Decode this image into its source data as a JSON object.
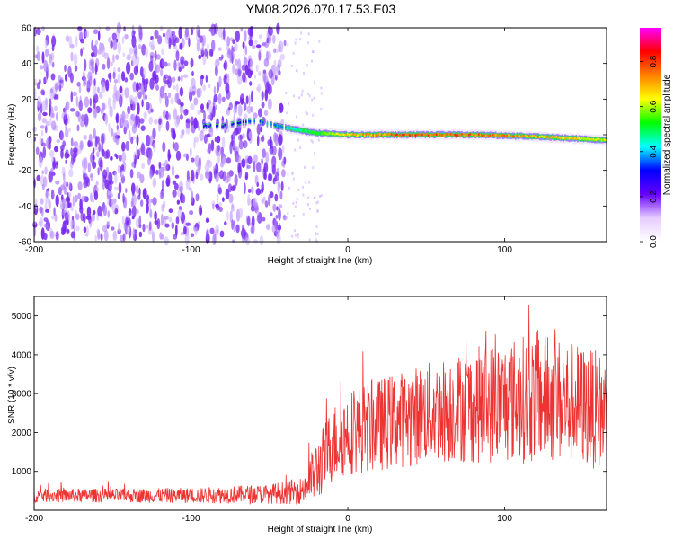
{
  "title": "YM08.2026.070.17.53.E03",
  "chart_data": [
    {
      "type": "heatmap",
      "xlabel": "Height of straight line (km)",
      "ylabel": "Frequency (Hz)",
      "xlim": [
        -200,
        165
      ],
      "ylim": [
        -60,
        60
      ],
      "xticks": [
        -200,
        -100,
        0,
        100
      ],
      "xtick_labels": [
        "-200",
        "-100",
        "0",
        "100"
      ],
      "yticks": [
        -60,
        -40,
        -20,
        0,
        20,
        40,
        60
      ],
      "ytick_labels": [
        "-60",
        "-40",
        "-20",
        "0",
        "20",
        "40",
        "60"
      ],
      "colorbar": {
        "label": "Normalized spectral amplitude",
        "range": [
          0,
          0.95
        ],
        "ticks": [
          0.0,
          0.2,
          0.4,
          0.6,
          0.8
        ],
        "tick_labels": [
          "0.0",
          "0.2",
          "0.4",
          "0.6",
          "0.8"
        ],
        "colormap": [
          "#ffffff",
          "#e6ccff",
          "#6600ff",
          "#0000ff",
          "#00ffff",
          "#00ff00",
          "#ffff00",
          "#ff8000",
          "#ff0000",
          "#ff00ff"
        ]
      },
      "noise_region_x": [
        -200,
        -40
      ],
      "signal_line": {
        "x": [
          -80,
          -60,
          -40,
          -20,
          0,
          40,
          80,
          120,
          165
        ],
        "frequency": [
          5,
          8,
          4,
          1,
          0,
          0,
          0,
          -1,
          -3
        ],
        "amplitude": [
          0.3,
          0.4,
          0.45,
          0.6,
          0.75,
          0.9,
          0.85,
          0.8,
          0.7
        ]
      }
    },
    {
      "type": "line",
      "xlabel": "Height of straight line (km)",
      "ylabel": "SNR (10 * v/v)",
      "xlim": [
        -200,
        165
      ],
      "ylim": [
        0,
        5500
      ],
      "xticks": [
        -200,
        -100,
        0,
        100
      ],
      "xtick_labels": [
        "-200",
        "-100",
        "0",
        "100"
      ],
      "yticks": [
        1000,
        2000,
        3000,
        4000,
        5000
      ],
      "ytick_labels": [
        "1000",
        "2000",
        "3000",
        "4000",
        "5000"
      ],
      "line_color": "#ee3333",
      "envelope": {
        "x": [
          -200,
          -150,
          -100,
          -50,
          -30,
          -20,
          -10,
          0,
          20,
          50,
          80,
          100,
          120,
          140,
          165
        ],
        "mean": [
          380,
          380,
          380,
          420,
          500,
          1000,
          1700,
          2000,
          2200,
          2500,
          2700,
          2800,
          2900,
          2800,
          2500
        ],
        "spread": [
          180,
          180,
          200,
          250,
          350,
          800,
          1000,
          1100,
          1200,
          1300,
          1500,
          1600,
          1700,
          1600,
          1500
        ]
      }
    }
  ]
}
